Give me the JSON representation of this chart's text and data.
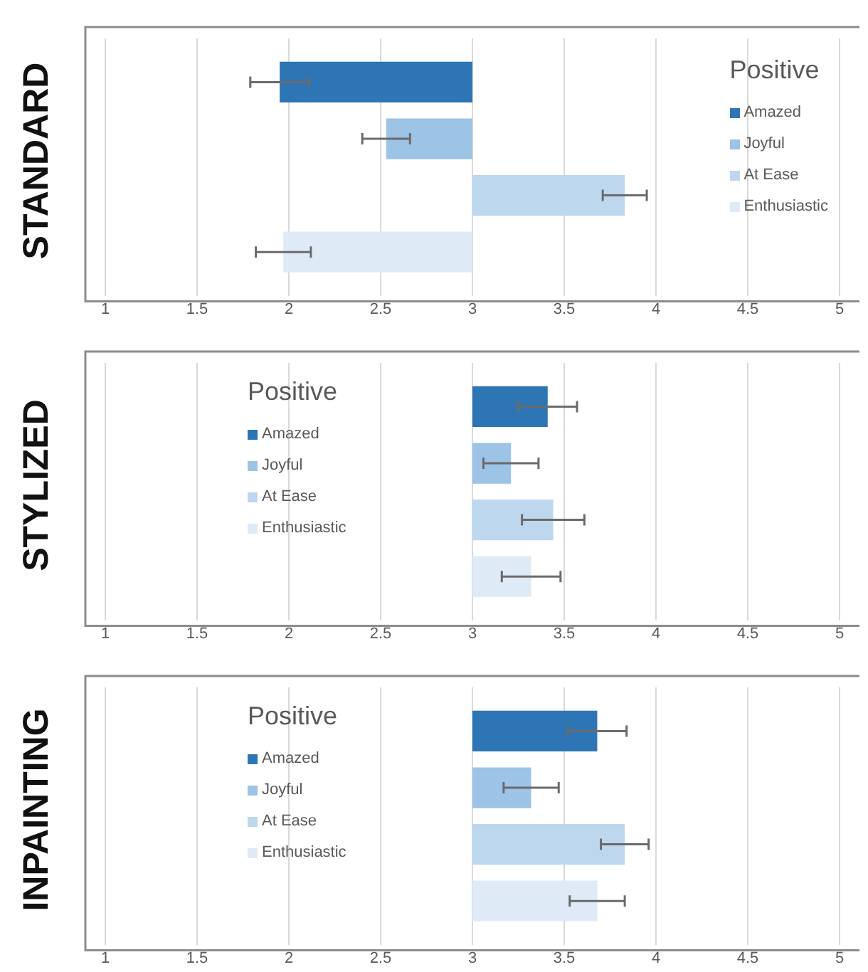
{
  "chart_data": [
    {
      "type": "bar",
      "title": "STANDARD",
      "orientation": "horizontal",
      "categories": [
        null
      ],
      "legend_title": "Positive",
      "legend": "top right",
      "grid": "x",
      "xlim": [
        1,
        5
      ],
      "xticks": [
        1,
        1.5,
        2,
        2.5,
        3,
        3.5,
        4,
        4.5,
        5
      ],
      "series": [
        {
          "name": "Amazed",
          "color": "#2e75b6",
          "base": [
            3
          ],
          "values": [
            -1.05
          ],
          "errors": [
            0.16
          ]
        },
        {
          "name": "Joyful",
          "color": "#9dc3e6",
          "base": [
            3
          ],
          "values": [
            -0.47
          ],
          "errors": [
            0.13
          ]
        },
        {
          "name": "At Ease",
          "color": "#bdd7ee",
          "base": [
            3
          ],
          "values": [
            0.83
          ],
          "errors": [
            0.12
          ]
        },
        {
          "name": "Enthusiastic",
          "color": "#deebf7",
          "base": [
            3
          ],
          "values": [
            -1.03
          ],
          "errors": [
            0.15
          ]
        }
      ]
    },
    {
      "type": "bar",
      "title": "STYLIZED",
      "orientation": "horizontal",
      "categories": [
        null
      ],
      "legend_title": "Positive",
      "legend": "top left",
      "grid": "x",
      "xlim": [
        1,
        5
      ],
      "xticks": [
        1,
        1.5,
        2,
        2.5,
        3,
        3.5,
        4,
        4.5,
        5
      ],
      "series": [
        {
          "name": "Amazed",
          "color": "#2e75b6",
          "base": [
            3
          ],
          "values": [
            0.41
          ],
          "errors": [
            0.16
          ]
        },
        {
          "name": "Joyful",
          "color": "#9dc3e6",
          "base": [
            3
          ],
          "values": [
            0.21
          ],
          "errors": [
            0.15
          ]
        },
        {
          "name": "At Ease",
          "color": "#bdd7ee",
          "base": [
            3
          ],
          "values": [
            0.44
          ],
          "errors": [
            0.17
          ]
        },
        {
          "name": "Enthusiastic",
          "color": "#deebf7",
          "base": [
            3
          ],
          "values": [
            0.32
          ],
          "errors": [
            0.16
          ]
        }
      ]
    },
    {
      "type": "bar",
      "title": "INPAINTING",
      "orientation": "horizontal",
      "categories": [
        null
      ],
      "legend_title": "Positive",
      "legend": "top left",
      "grid": "x",
      "xlim": [
        1,
        5
      ],
      "xticks": [
        1,
        1.5,
        2,
        2.5,
        3,
        3.5,
        4,
        4.5,
        5
      ],
      "series": [
        {
          "name": "Amazed",
          "color": "#2e75b6",
          "base": [
            3
          ],
          "values": [
            0.68
          ],
          "errors": [
            0.16
          ]
        },
        {
          "name": "Joyful",
          "color": "#9dc3e6",
          "base": [
            3
          ],
          "values": [
            0.32
          ],
          "errors": [
            0.15
          ]
        },
        {
          "name": "At Ease",
          "color": "#bdd7ee",
          "base": [
            3
          ],
          "values": [
            0.83
          ],
          "errors": [
            0.13
          ]
        },
        {
          "name": "Enthusiastic",
          "color": "#deebf7",
          "base": [
            3
          ],
          "values": [
            0.68
          ],
          "errors": [
            0.15
          ]
        }
      ]
    }
  ]
}
